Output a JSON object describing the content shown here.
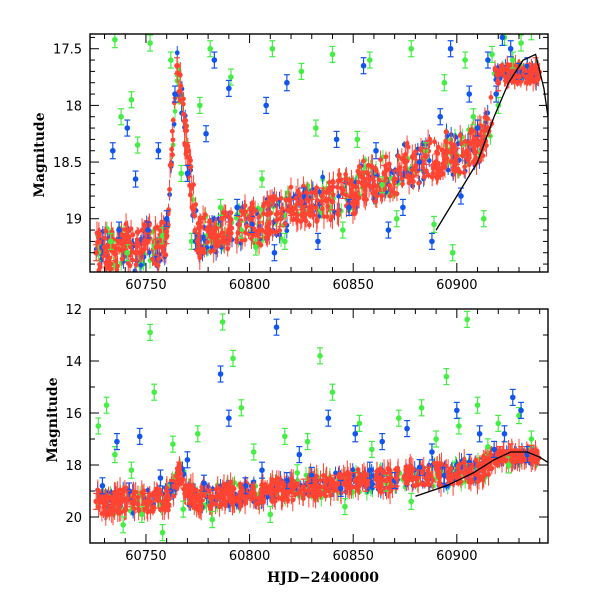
{
  "chart_data": [
    {
      "type": "scatter",
      "panel": "top",
      "title": "",
      "xlabel": "",
      "ylabel": "Magnitude",
      "xlim": [
        60723,
        60944
      ],
      "ylim": [
        19.47,
        17.37
      ],
      "y_inverted": true,
      "xticks": [
        60750,
        60800,
        60850,
        60900
      ],
      "yticks": [
        17.5,
        18,
        18.5,
        19
      ],
      "ytick_labels": [
        "17.5",
        "18",
        "18.5",
        "19"
      ],
      "series": [
        {
          "color": "#44ee44",
          "points": [
            [
              60727,
              19.3
            ],
            [
              60733,
              19.2
            ],
            [
              60735,
              17.42
            ],
            [
              60738,
              18.1
            ],
            [
              60741,
              19.3
            ],
            [
              60743,
              17.95
            ],
            [
              60746,
              18.35
            ],
            [
              60752,
              17.45
            ],
            [
              60754,
              19.25
            ],
            [
              60758,
              19.15
            ],
            [
              60762,
              17.6
            ],
            [
              60767,
              18.6
            ],
            [
              60772,
              19.2
            ],
            [
              60776,
              18.0
            ],
            [
              60781,
              17.5
            ],
            [
              60786,
              18.9
            ],
            [
              60791,
              17.75
            ],
            [
              60796,
              19.1
            ],
            [
              60803,
              19.25
            ],
            [
              60806,
              18.65
            ],
            [
              60811,
              17.5
            ],
            [
              60817,
              19.2
            ],
            [
              60825,
              17.7
            ],
            [
              60832,
              18.2
            ],
            [
              60840,
              17.55
            ],
            [
              60845,
              19.1
            ],
            [
              60852,
              18.3
            ],
            [
              60858,
              17.6
            ],
            [
              60864,
              18.7
            ],
            [
              60871,
              19.0
            ],
            [
              60878,
              17.5
            ],
            [
              60885,
              18.4
            ],
            [
              60889,
              19.05
            ],
            [
              60894,
              17.8
            ],
            [
              60898,
              19.3
            ],
            [
              60904,
              17.6
            ],
            [
              60908,
              18.1
            ],
            [
              60913,
              19.0
            ],
            [
              60917,
              17.55
            ],
            [
              60920,
              18.0
            ],
            [
              60923,
              17.4
            ],
            [
              60927,
              17.6
            ],
            [
              60931,
              17.45
            ],
            [
              60936,
              17.35
            ]
          ]
        },
        {
          "color": "#1155ee",
          "points": [
            [
              60729,
              19.25
            ],
            [
              60734,
              18.4
            ],
            [
              60737,
              19.1
            ],
            [
              60741,
              18.2
            ],
            [
              60745,
              18.65
            ],
            [
              60751,
              19.1
            ],
            [
              60756,
              18.4
            ],
            [
              60760,
              19.0
            ],
            [
              60764,
              17.9
            ],
            [
              60770,
              18.6
            ],
            [
              60774,
              19.2
            ],
            [
              60779,
              18.25
            ],
            [
              60783,
              17.6
            ],
            [
              60790,
              17.85
            ],
            [
              60794,
              18.9
            ],
            [
              60801,
              19.05
            ],
            [
              60808,
              18.0
            ],
            [
              60812,
              19.3
            ],
            [
              60818,
              17.8
            ],
            [
              60826,
              18.8
            ],
            [
              60833,
              19.2
            ],
            [
              60842,
              18.3
            ],
            [
              60848,
              18.9
            ],
            [
              60855,
              17.65
            ],
            [
              60861,
              18.4
            ],
            [
              60867,
              19.1
            ],
            [
              60874,
              18.9
            ],
            [
              60882,
              18.5
            ],
            [
              60888,
              19.2
            ],
            [
              60892,
              18.1
            ],
            [
              60897,
              17.5
            ],
            [
              60902,
              18.8
            ],
            [
              60906,
              17.9
            ],
            [
              60910,
              18.2
            ],
            [
              60915,
              17.6
            ],
            [
              60919,
              17.9
            ],
            [
              60922,
              17.4
            ],
            [
              60926,
              17.5
            ],
            [
              60930,
              17.7
            ],
            [
              60934,
              17.65
            ]
          ]
        },
        {
          "color": "#ff4433",
          "points": [
            [
              60726,
              19.3
            ],
            [
              60730,
              19.25
            ],
            [
              60735,
              19.3
            ],
            [
              60740,
              19.2
            ],
            [
              60745,
              19.3
            ],
            [
              60750,
              19.2
            ],
            [
              60755,
              19.25
            ],
            [
              60760,
              19.15
            ],
            [
              60765,
              17.65
            ],
            [
              60770,
              18.4
            ],
            [
              60775,
              19.2
            ],
            [
              60780,
              19.1
            ],
            [
              60785,
              19.15
            ],
            [
              60790,
              19.1
            ],
            [
              60795,
              19.05
            ],
            [
              60800,
              19.0
            ],
            [
              60805,
              19.1
            ],
            [
              60810,
              18.95
            ],
            [
              60815,
              19.0
            ],
            [
              60820,
              18.9
            ],
            [
              60825,
              18.85
            ],
            [
              60830,
              18.9
            ],
            [
              60835,
              18.8
            ],
            [
              60840,
              18.85
            ],
            [
              60845,
              18.75
            ],
            [
              60850,
              18.8
            ],
            [
              60855,
              18.65
            ],
            [
              60860,
              18.7
            ],
            [
              60865,
              18.6
            ],
            [
              60870,
              18.65
            ],
            [
              60875,
              18.5
            ],
            [
              60880,
              18.55
            ],
            [
              60885,
              18.45
            ],
            [
              60890,
              18.5
            ],
            [
              60895,
              18.4
            ],
            [
              60900,
              18.45
            ],
            [
              60905,
              18.4
            ],
            [
              60910,
              18.35
            ],
            [
              60915,
              18.2
            ],
            [
              60920,
              17.8
            ],
            [
              60925,
              17.7
            ],
            [
              60930,
              17.75
            ],
            [
              60935,
              17.7
            ],
            [
              60938,
              17.65
            ]
          ]
        }
      ],
      "curve": [
        [
          60890,
          19.1
        ],
        [
          60900,
          18.8
        ],
        [
          60910,
          18.5
        ],
        [
          60918,
          18.1
        ],
        [
          60925,
          17.8
        ],
        [
          60932,
          17.6
        ],
        [
          60938,
          17.55
        ],
        [
          60942,
          17.85
        ],
        [
          60944,
          18.1
        ]
      ]
    },
    {
      "type": "scatter",
      "panel": "bottom",
      "title": "",
      "xlabel": "HJD−2400000",
      "ylabel": "Magnitude",
      "xlim": [
        60723,
        60944
      ],
      "ylim": [
        21.0,
        12.0
      ],
      "y_inverted": true,
      "xticks": [
        60750,
        60800,
        60850,
        60900
      ],
      "yticks": [
        12,
        14,
        16,
        18,
        20
      ],
      "ytick_labels": [
        "12",
        "14",
        "16",
        "18",
        "20"
      ],
      "series": [
        {
          "color": "#44ee44",
          "points": [
            [
              60727,
              16.5
            ],
            [
              60731,
              15.7
            ],
            [
              60735,
              17.6
            ],
            [
              60739,
              20.3
            ],
            [
              60743,
              18.2
            ],
            [
              60748,
              19.9
            ],
            [
              60752,
              12.9
            ],
            [
              60754,
              15.2
            ],
            [
              60758,
              20.6
            ],
            [
              60763,
              17.2
            ],
            [
              60768,
              19.7
            ],
            [
              60775,
              16.8
            ],
            [
              60782,
              20.1
            ],
            [
              60787,
              12.5
            ],
            [
              60792,
              13.9
            ],
            [
              60796,
              15.8
            ],
            [
              60802,
              17.5
            ],
            [
              60810,
              19.9
            ],
            [
              60817,
              16.9
            ],
            [
              60823,
              18.3
            ],
            [
              60828,
              17.1
            ],
            [
              60834,
              13.8
            ],
            [
              60840,
              15.2
            ],
            [
              60846,
              19.6
            ],
            [
              60853,
              16.4
            ],
            [
              60859,
              17.4
            ],
            [
              60866,
              18.7
            ],
            [
              60872,
              16.2
            ],
            [
              60878,
              19.4
            ],
            [
              60883,
              15.8
            ],
            [
              60890,
              17.0
            ],
            [
              60895,
              14.6
            ],
            [
              60901,
              16.5
            ],
            [
              60905,
              12.4
            ],
            [
              60910,
              15.7
            ],
            [
              60915,
              17.3
            ],
            [
              60920,
              16.4
            ],
            [
              60925,
              18.0
            ],
            [
              60930,
              16.1
            ],
            [
              60936,
              17.0
            ]
          ]
        },
        {
          "color": "#1155ee",
          "points": [
            [
              60729,
              18.8
            ],
            [
              60736,
              17.1
            ],
            [
              60742,
              19.0
            ],
            [
              60747,
              16.9
            ],
            [
              60757,
              18.5
            ],
            [
              60762,
              19.0
            ],
            [
              60770,
              17.8
            ],
            [
              60778,
              18.7
            ],
            [
              60786,
              14.5
            ],
            [
              60790,
              16.2
            ],
            [
              60798,
              18.8
            ],
            [
              60806,
              18.2
            ],
            [
              60813,
              12.7
            ],
            [
              60818,
              18.6
            ],
            [
              60824,
              17.6
            ],
            [
              60830,
              18.4
            ],
            [
              60838,
              16.2
            ],
            [
              60844,
              18.9
            ],
            [
              60851,
              16.8
            ],
            [
              60858,
              18.2
            ],
            [
              60864,
              17.1
            ],
            [
              60870,
              18.6
            ],
            [
              60876,
              16.6
            ],
            [
              60882,
              18.1
            ],
            [
              60888,
              17.5
            ],
            [
              60894,
              18.4
            ],
            [
              60900,
              15.9
            ],
            [
              60906,
              17.9
            ],
            [
              60911,
              16.8
            ],
            [
              60918,
              17.4
            ],
            [
              60923,
              16.8
            ],
            [
              60927,
              15.4
            ],
            [
              60931,
              15.9
            ],
            [
              60934,
              17.6
            ]
          ]
        },
        {
          "color": "#ff4433",
          "points": [
            [
              60726,
              19.4
            ],
            [
              60731,
              19.5
            ],
            [
              60736,
              19.45
            ],
            [
              60741,
              19.3
            ],
            [
              60746,
              19.5
            ],
            [
              60751,
              19.4
            ],
            [
              60756,
              19.35
            ],
            [
              60761,
              19.3
            ],
            [
              60766,
              18.2
            ],
            [
              60771,
              19.2
            ],
            [
              60776,
              19.3
            ],
            [
              60781,
              19.25
            ],
            [
              60786,
              19.2
            ],
            [
              60791,
              19.1
            ],
            [
              60796,
              19.15
            ],
            [
              60801,
              19.05
            ],
            [
              60806,
              19.1
            ],
            [
              60811,
              19.0
            ],
            [
              60816,
              18.95
            ],
            [
              60821,
              18.9
            ],
            [
              60826,
              18.85
            ],
            [
              60831,
              18.8
            ],
            [
              60836,
              18.85
            ],
            [
              60841,
              18.7
            ],
            [
              60846,
              18.75
            ],
            [
              60851,
              18.6
            ],
            [
              60856,
              18.7
            ],
            [
              60861,
              18.55
            ],
            [
              60866,
              18.6
            ],
            [
              60871,
              18.5
            ],
            [
              60876,
              18.45
            ],
            [
              60881,
              18.5
            ],
            [
              60886,
              18.4
            ],
            [
              60891,
              18.35
            ],
            [
              60896,
              18.4
            ],
            [
              60901,
              18.3
            ],
            [
              60906,
              18.25
            ],
            [
              60911,
              18.2
            ],
            [
              60916,
              17.9
            ],
            [
              60921,
              17.6
            ],
            [
              60926,
              17.5
            ],
            [
              60931,
              17.6
            ],
            [
              60936,
              17.55
            ]
          ]
        }
      ],
      "curve": [
        [
          60880,
          19.2
        ],
        [
          60895,
          18.8
        ],
        [
          60908,
          18.3
        ],
        [
          60918,
          17.8
        ],
        [
          60926,
          17.5
        ],
        [
          60934,
          17.5
        ],
        [
          60940,
          17.7
        ],
        [
          60944,
          17.9
        ]
      ]
    }
  ]
}
